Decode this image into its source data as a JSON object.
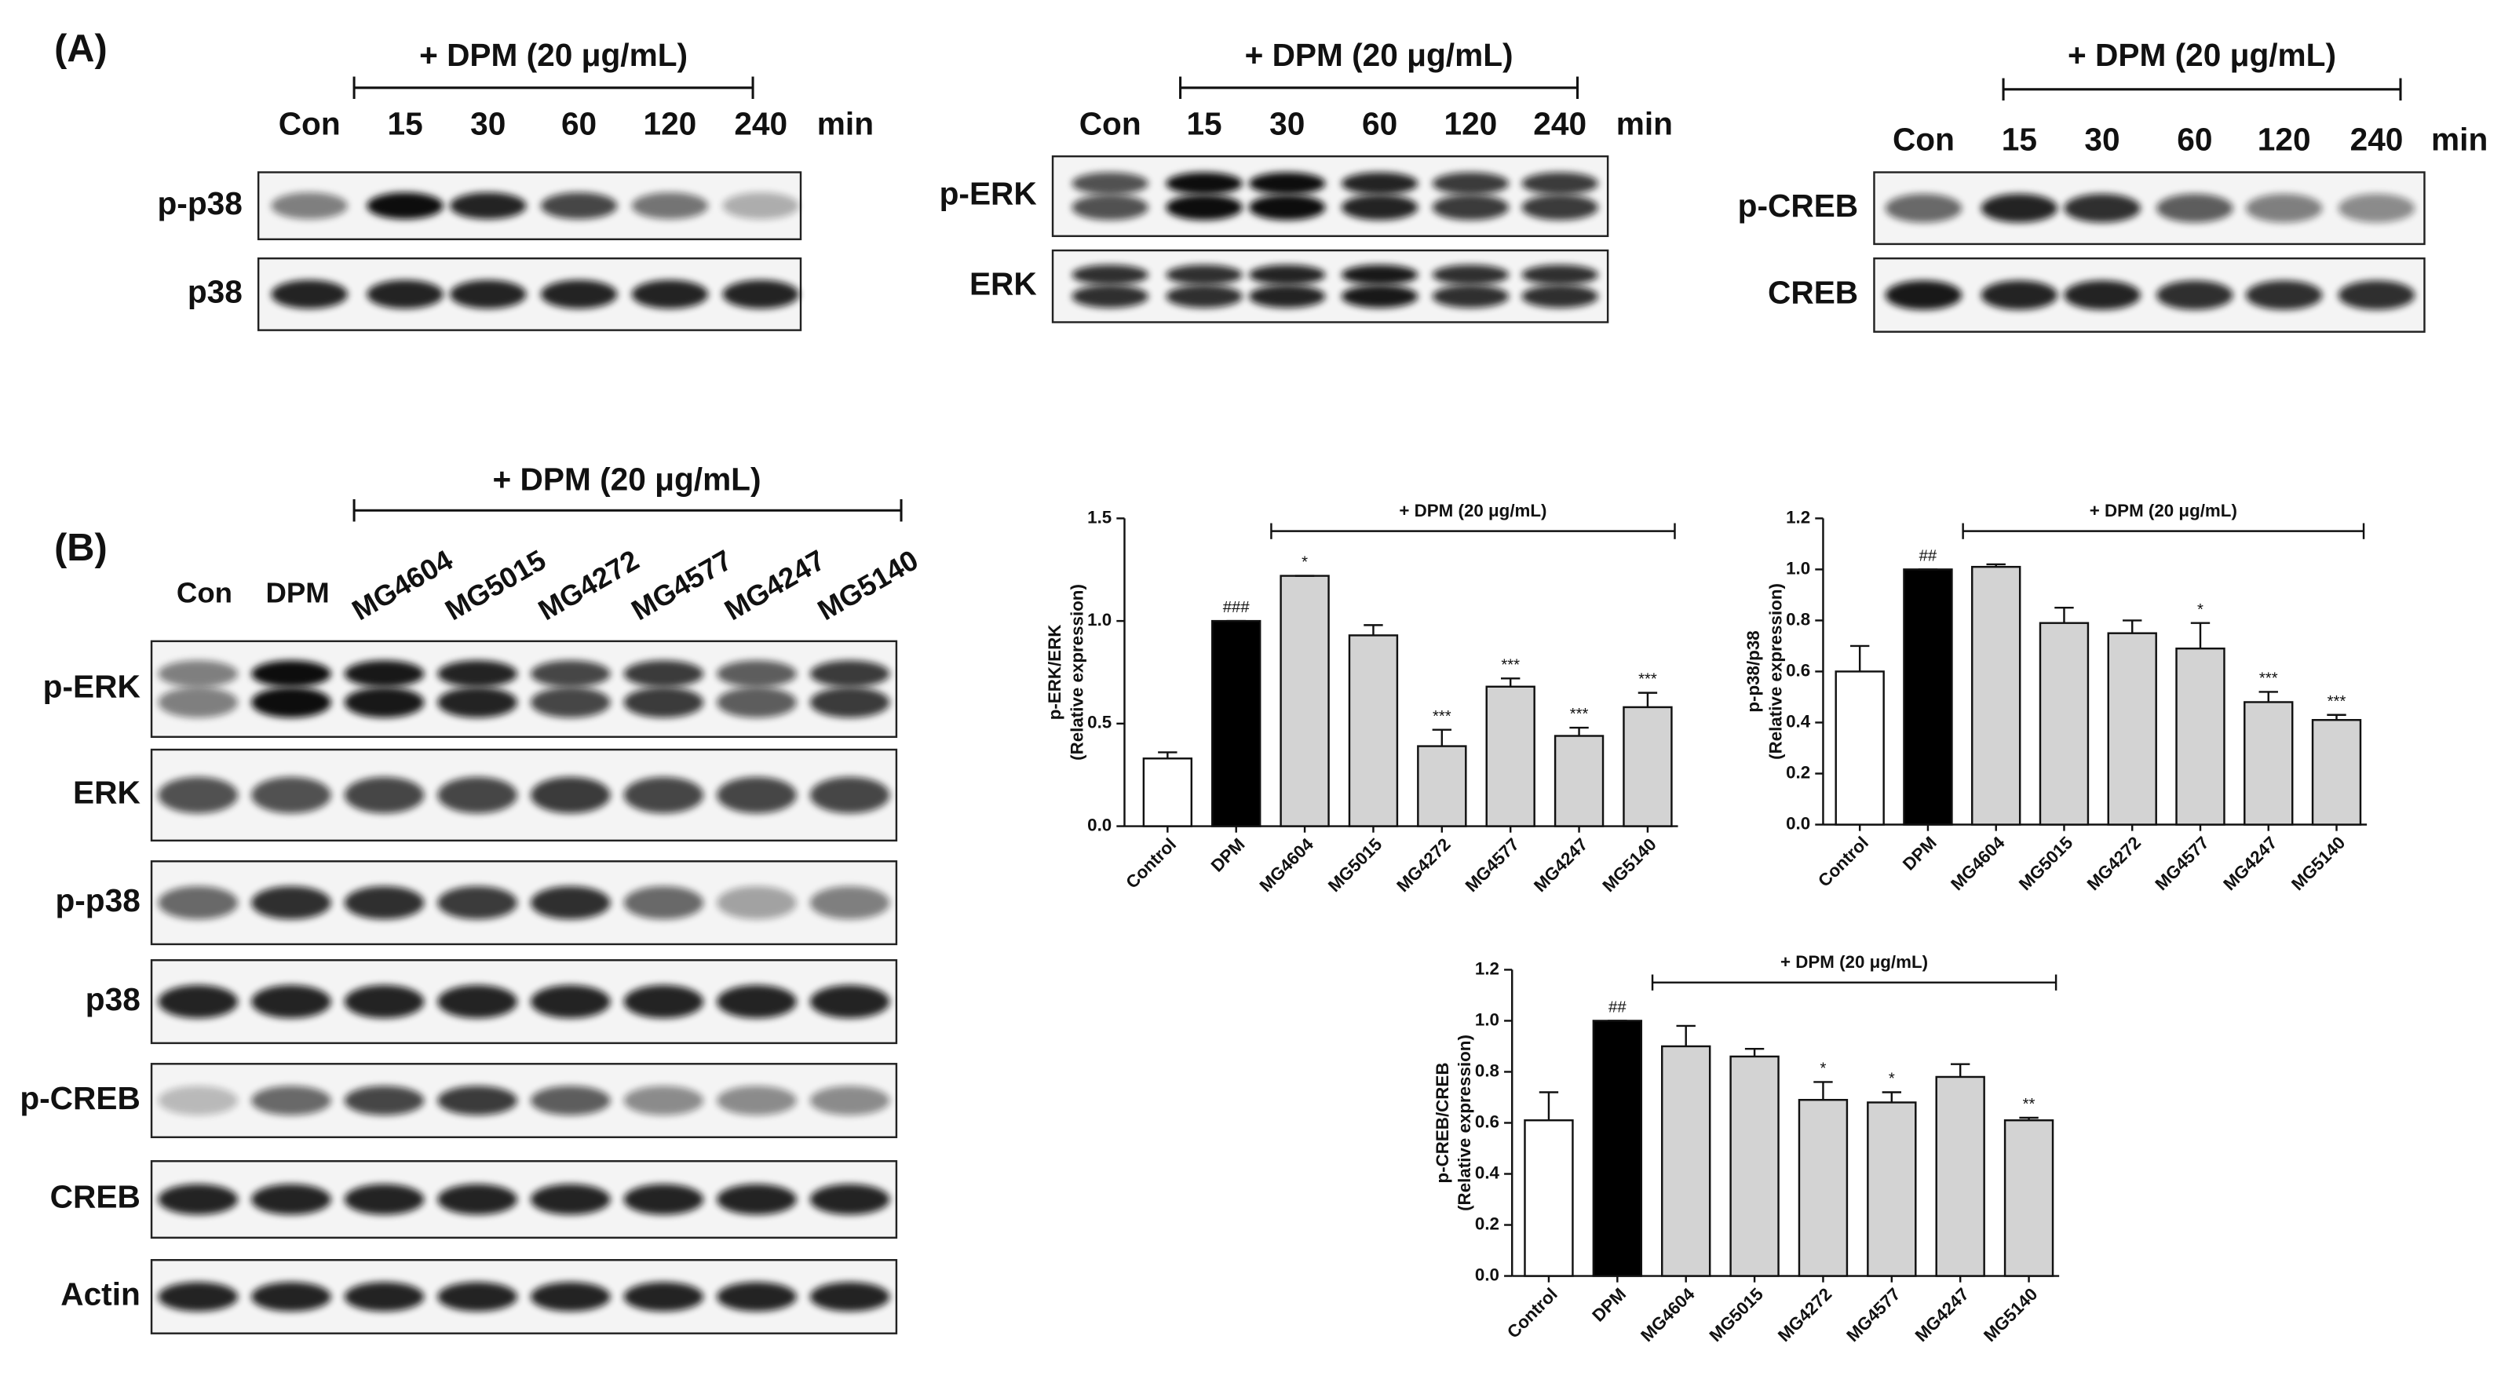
{
  "panel_a": {
    "label": "(A)",
    "blots": [
      {
        "treatment": "+ DPM (20 μg/mL)",
        "lanes": [
          "Con",
          "15",
          "30",
          "60",
          "120",
          "240"
        ],
        "unit": "min",
        "rows": [
          "p-p38",
          "p38"
        ]
      },
      {
        "treatment": "+ DPM (20 μg/mL)",
        "lanes": [
          "Con",
          "15",
          "30",
          "60",
          "120",
          "240"
        ],
        "unit": "min",
        "rows": [
          "p-ERK",
          "ERK"
        ]
      },
      {
        "treatment": "+ DPM (20 μg/mL)",
        "lanes": [
          "Con",
          "15",
          "30",
          "60",
          "120",
          "240"
        ],
        "unit": "min",
        "rows": [
          "p-CREB",
          "CREB"
        ]
      }
    ]
  },
  "panel_b": {
    "label": "(B)",
    "treatment": "+ DPM (20 μg/mL)",
    "lanes": [
      "Con",
      "DPM",
      "MG4604",
      "MG5015",
      "MG4272",
      "MG4577",
      "MG4247",
      "MG5140"
    ],
    "rows": [
      "p-ERK",
      "ERK",
      "p-p38",
      "p38",
      "p-CREB",
      "CREB",
      "Actin"
    ]
  },
  "chart_data": [
    {
      "type": "bar",
      "ylabel": "p-ERK/ERK",
      "ylabel_sub": "(Relative expression)",
      "bracket_label": "+ DPM (20 μg/mL)",
      "categories": [
        "Control",
        "DPM",
        "MG4604",
        "MG5015",
        "MG4272",
        "MG4577",
        "MG4247",
        "MG5140"
      ],
      "values": [
        0.33,
        1.0,
        1.22,
        0.93,
        0.39,
        0.68,
        0.44,
        0.58
      ],
      "errors": [
        0.03,
        0.0,
        0.0,
        0.05,
        0.08,
        0.04,
        0.04,
        0.07
      ],
      "annotations": [
        null,
        "###",
        "*",
        null,
        "***",
        "***",
        "***",
        "***"
      ],
      "colors": [
        "#ffffff",
        "#000000",
        "#d3d3d3",
        "#d3d3d3",
        "#d3d3d3",
        "#d3d3d3",
        "#d3d3d3",
        "#d3d3d3"
      ],
      "ylim": [
        0,
        1.5
      ],
      "yticks": [
        {
          "value": 0,
          "label": "0.0"
        },
        0.5,
        {
          "value": 1,
          "label": "1.0"
        },
        1.5
      ]
    },
    {
      "type": "bar",
      "ylabel": "p-p38/p38",
      "ylabel_sub": "(Relative expression)",
      "bracket_label": "+ DPM (20 μg/mL)",
      "categories": [
        "Control",
        "DPM",
        "MG4604",
        "MG5015",
        "MG4272",
        "MG4577",
        "MG4247",
        "MG5140"
      ],
      "values": [
        0.6,
        1.0,
        1.01,
        0.79,
        0.75,
        0.69,
        0.48,
        0.41
      ],
      "errors": [
        0.1,
        0.0,
        0.01,
        0.06,
        0.05,
        0.1,
        0.04,
        0.02
      ],
      "annotations": [
        null,
        "##",
        null,
        null,
        null,
        "*",
        "***",
        "***"
      ],
      "colors": [
        "#ffffff",
        "#000000",
        "#d3d3d3",
        "#d3d3d3",
        "#d3d3d3",
        "#d3d3d3",
        "#d3d3d3",
        "#d3d3d3"
      ],
      "ylim": [
        0,
        1.2
      ],
      "yticks": [
        {
          "value": 0,
          "label": "0.0"
        },
        0.2,
        0.4,
        0.6,
        0.8,
        {
          "value": 1,
          "label": "1.0"
        },
        1.2
      ]
    },
    {
      "type": "bar",
      "ylabel": "p-CREB/CREB",
      "ylabel_sub": "(Relative expression)",
      "bracket_label": "+ DPM (20 μg/mL)",
      "categories": [
        "Control",
        "DPM",
        "MG4604",
        "MG5015",
        "MG4272",
        "MG4577",
        "MG4247",
        "MG5140"
      ],
      "values": [
        0.61,
        1.0,
        0.9,
        0.86,
        0.69,
        0.68,
        0.78,
        0.61
      ],
      "errors": [
        0.11,
        0.0,
        0.08,
        0.03,
        0.07,
        0.04,
        0.05,
        0.01
      ],
      "annotations": [
        null,
        "##",
        null,
        null,
        "*",
        "*",
        null,
        "**"
      ],
      "colors": [
        "#ffffff",
        "#000000",
        "#d3d3d3",
        "#d3d3d3",
        "#d3d3d3",
        "#d3d3d3",
        "#d3d3d3",
        "#d3d3d3"
      ],
      "ylim": [
        0,
        1.2
      ],
      "yticks": [
        {
          "value": 0,
          "label": "0.0"
        },
        0.2,
        0.4,
        0.6,
        0.8,
        {
          "value": 1,
          "label": "1.0"
        },
        1.2
      ]
    }
  ]
}
